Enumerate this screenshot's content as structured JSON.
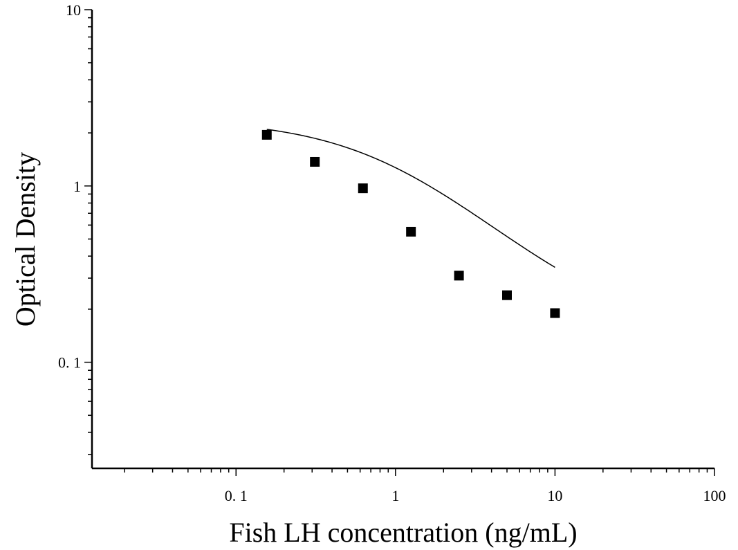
{
  "chart_data": {
    "type": "scatter",
    "title": "",
    "xlabel": "Fish LH concentration (ng/mL)",
    "ylabel": "Optical Density",
    "xscale": "log",
    "yscale": "log",
    "xlim": [
      0.0125,
      100
    ],
    "ylim": [
      0.025,
      10
    ],
    "x_tick_labels": [
      "0. 1",
      "1",
      "10",
      "100"
    ],
    "x_tick_values": [
      0.1,
      1,
      10,
      100
    ],
    "y_tick_labels": [
      "0. 1",
      "1",
      "10"
    ],
    "y_tick_values": [
      0.1,
      1,
      10
    ],
    "grid": false,
    "legend": "none",
    "series": [
      {
        "marker": "square",
        "x": [
          0.156,
          0.312,
          0.625,
          1.25,
          2.5,
          5,
          10
        ],
        "y": [
          1.95,
          1.37,
          0.97,
          0.55,
          0.31,
          0.24,
          0.19
        ]
      }
    ],
    "fit_curve": {
      "type": "4PL",
      "A": 2.4,
      "D": 0.14,
      "C": 1.0,
      "B": 1.0,
      "x_range": [
        0.156,
        10
      ]
    },
    "colors": {
      "marker": "#000000",
      "line": "#000000",
      "axis": "#000000"
    }
  }
}
